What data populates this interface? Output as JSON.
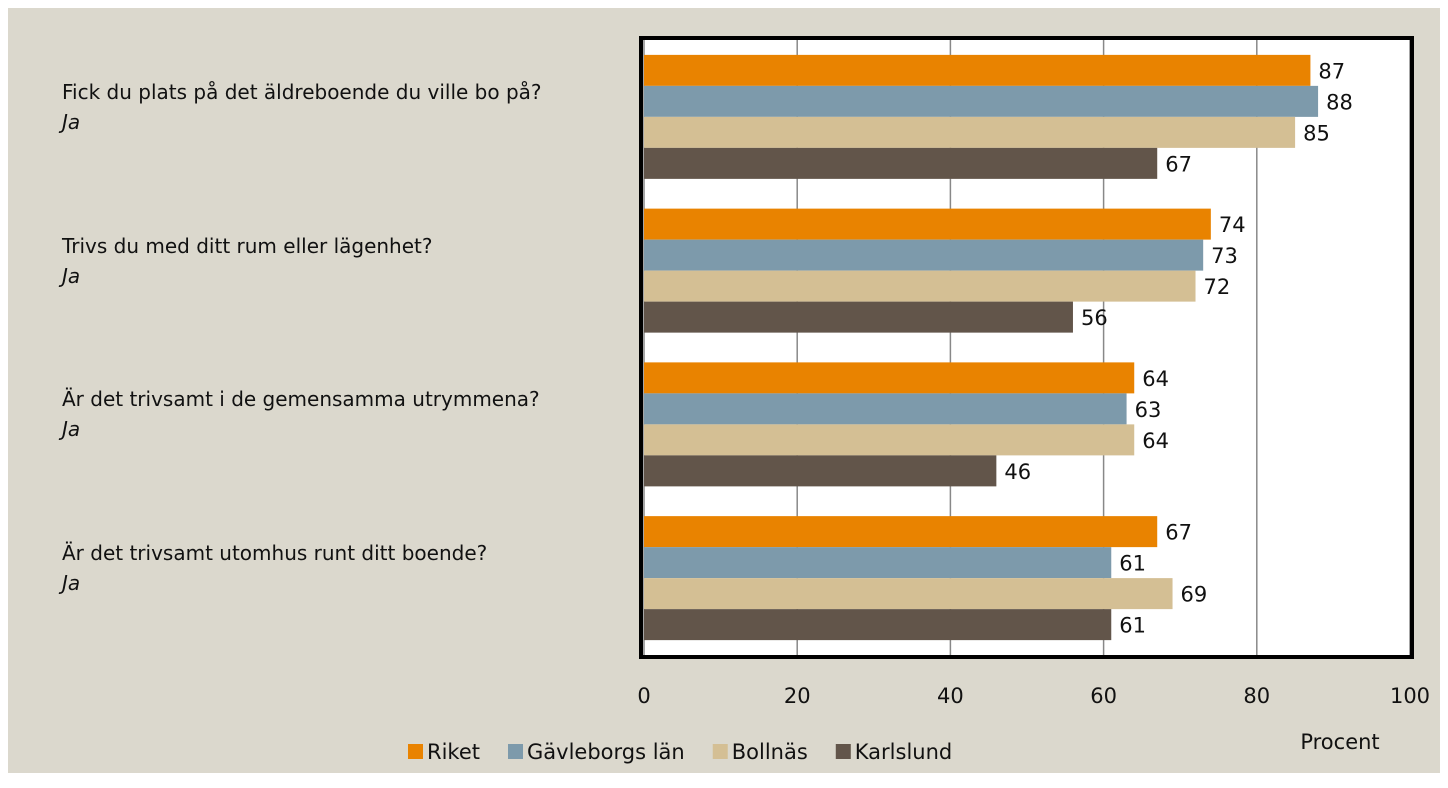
{
  "chart_data": {
    "type": "bar",
    "orientation": "horizontal",
    "categories": [
      "Fick du plats på det äldreboende du ville bo på?",
      "Trivs du med ditt rum eller lägenhet?",
      "Är det trivsamt i de gemensamma utrymmena?",
      "Är det trivsamt utomhus runt ditt boende?"
    ],
    "category_note": "Ja",
    "series": [
      {
        "name": "Riket",
        "color": "#e98300",
        "values": [
          87,
          74,
          64,
          67
        ]
      },
      {
        "name": "Gävleborgs län",
        "color": "#7d9aab",
        "values": [
          88,
          73,
          63,
          61
        ]
      },
      {
        "name": "Bollnäs",
        "color": "#d4bf94",
        "values": [
          85,
          72,
          64,
          69
        ]
      },
      {
        "name": "Karlslund",
        "color": "#62554a",
        "values": [
          67,
          56,
          46,
          61
        ]
      }
    ],
    "x_label": "Procent",
    "xlim": [
      0,
      100
    ],
    "xticks": [
      0,
      20,
      40,
      60,
      80,
      100
    ],
    "grid": true,
    "legend": "bottom"
  }
}
